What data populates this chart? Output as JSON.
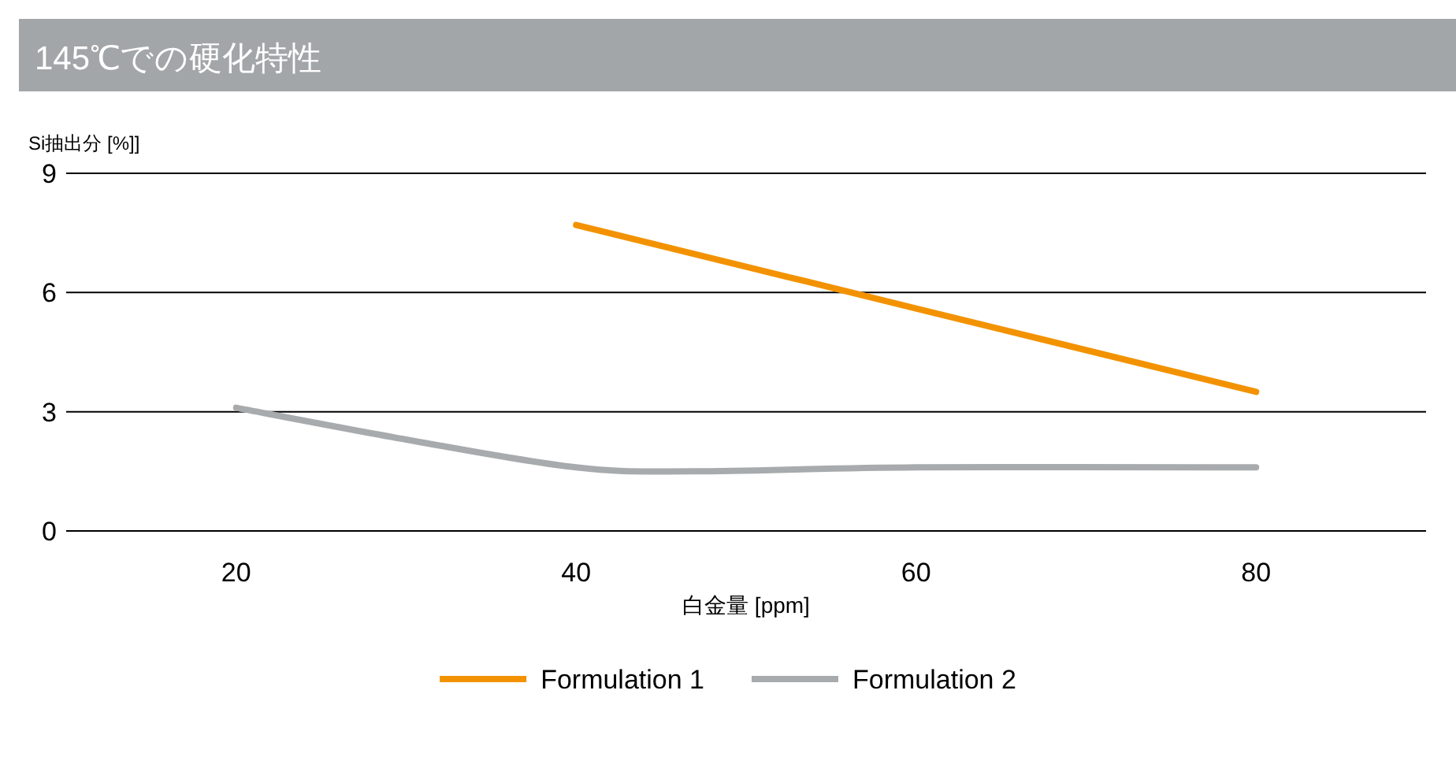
{
  "chart_data": {
    "type": "line",
    "title": "145℃での硬化特性",
    "xlabel": "白金量 [ppm]",
    "ylabel": "Si抽出分 [%]]",
    "series": [
      {
        "name": "Formulation 1",
        "color": "#f39200",
        "x": [
          40,
          60,
          80
        ],
        "values": [
          7.7,
          5.6,
          3.5
        ]
      },
      {
        "name": "Formulation 2",
        "color": "#a8abad",
        "x": [
          20,
          30,
          40,
          47,
          60,
          80
        ],
        "values": [
          3.1,
          2.3,
          1.6,
          1.5,
          1.6,
          1.6
        ]
      }
    ],
    "xlim": [
      10,
      90
    ],
    "ylim": [
      0,
      9
    ],
    "xticks": [
      20,
      40,
      60,
      80
    ],
    "yticks": [
      0,
      3,
      6,
      9
    ],
    "grid": "y",
    "legend": "bottom"
  }
}
